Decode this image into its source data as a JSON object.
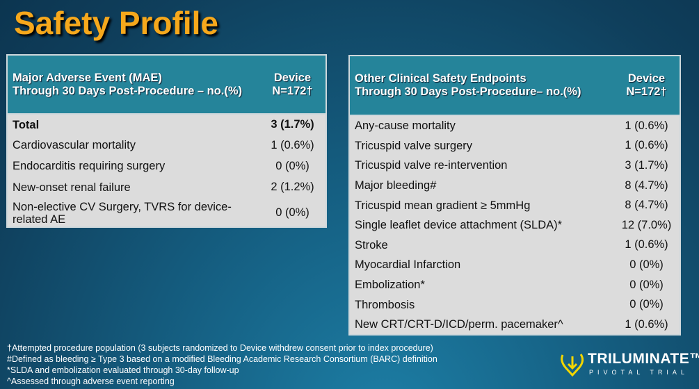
{
  "title": "Safety Profile",
  "left_table": {
    "header_line1": "Major Adverse Event (MAE)",
    "header_line2": "Through 30 Days Post-Procedure – no.(%)",
    "col_line1": "Device",
    "col_line2": "N=172†",
    "rows": [
      {
        "label": "Total",
        "value": "3 (1.7%)"
      },
      {
        "label": "Cardiovascular mortality",
        "value": "1 (0.6%)"
      },
      {
        "label": "Endocarditis requiring surgery",
        "value": "0 (0%)"
      },
      {
        "label": "New-onset renal failure",
        "value": "2 (1.2%)"
      },
      {
        "label": "Non-elective CV Surgery, TVRS for device-related AE",
        "value": "0 (0%)"
      }
    ]
  },
  "right_table": {
    "header_line1": "Other Clinical Safety Endpoints",
    "header_line2": "Through 30 Days Post-Procedure– no.(%)",
    "col_line1": "Device",
    "col_line2": "N=172†",
    "rows": [
      {
        "label": "Any-cause mortality",
        "value": "1 (0.6%)"
      },
      {
        "label": "Tricuspid valve surgery",
        "value": "1 (0.6%)"
      },
      {
        "label": "Tricuspid valve re-intervention",
        "value": "3 (1.7%)"
      },
      {
        "label": "Major bleeding#",
        "value": "8 (4.7%)"
      },
      {
        "label": "Tricuspid mean gradient ≥ 5mmHg",
        "value": "8 (4.7%)"
      },
      {
        "label": "Single leaflet device attachment (SLDA)*",
        "value": "12 (7.0%)"
      },
      {
        "label": "Stroke",
        "value": "1 (0.6%)"
      },
      {
        "label": "Myocardial Infarction",
        "value": "0 (0%)"
      },
      {
        "label": "Embolization*",
        "value": "0 (0%)"
      },
      {
        "label": "Thrombosis",
        "value": "0 (0%)"
      },
      {
        "label": "New CRT/CRT-D/ICD/perm. pacemaker^",
        "value": "1 (0.6%)"
      }
    ]
  },
  "footnotes": [
    "†Attempted procedure population (3 subjects randomized to Device withdrew consent prior to index procedure)",
    "#Defined as bleeding ≥ Type 3 based on a modified Bleeding Academic Research Consortium (BARC) definition",
    "*SLDA and embolization evaluated through 30-day follow-up",
    "^Assessed through adverse event reporting"
  ],
  "logo": {
    "name": "TRILUMINATE™",
    "subtitle": "PIVOTAL TRIAL"
  },
  "colors": {
    "title": "#f6a81c",
    "header": "#25849a",
    "body": "#dcdcdc",
    "logo_accent": "#f2d600"
  }
}
